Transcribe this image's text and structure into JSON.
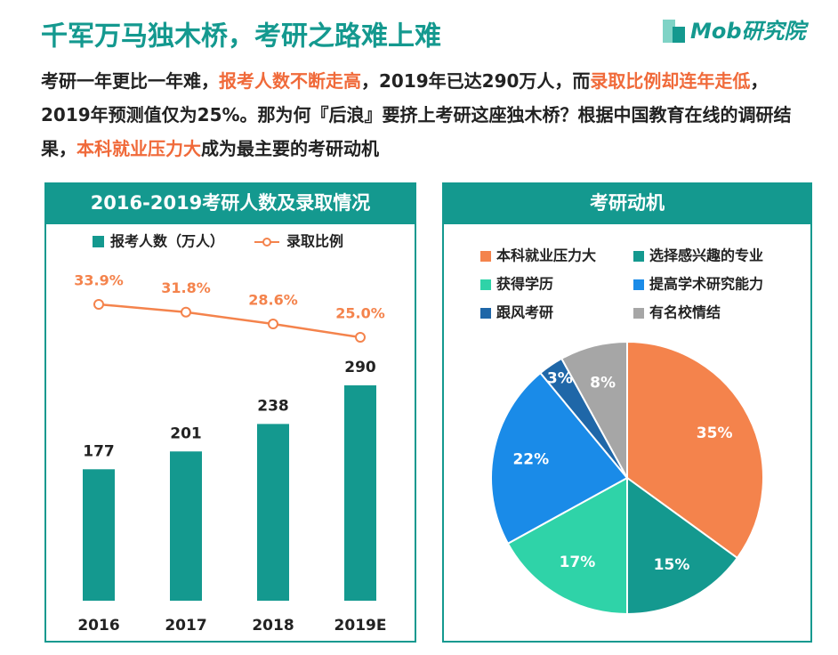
{
  "header": {
    "title": "千军万马独木桥，考研之路难上难",
    "logo": "Mob研究院"
  },
  "intro": [
    {
      "text": "考研一年更比一年难，",
      "highlight": false
    },
    {
      "text": "报考人数不断走高",
      "highlight": true
    },
    {
      "text": "，2019年已达290万人，而",
      "highlight": false
    },
    {
      "text": "录取比例却连年走低",
      "highlight": true
    },
    {
      "text": "，2019年预测值仅为25%。那为何『后浪』要挤上考研这座独木桥？根据中国教育在线的调研结果，",
      "highlight": false
    },
    {
      "text": "本科就业压力大",
      "highlight": true
    },
    {
      "text": "成为最主要的考研动机",
      "highlight": false
    }
  ],
  "chart_data": [
    {
      "type": "bar",
      "title": "2016-2019考研人数及录取情况",
      "categories": [
        "2016",
        "2017",
        "2018",
        "2019E"
      ],
      "series": [
        {
          "name": "报考人数（万人）",
          "color": "#14998f",
          "values": [
            177,
            201,
            238,
            290
          ]
        },
        {
          "name": "录取比例",
          "color": "#f4834c",
          "type": "line",
          "values": [
            33.9,
            31.8,
            28.6,
            25.0
          ],
          "value_labels": [
            "33.9%",
            "31.8%",
            "28.6%",
            "25.0%"
          ]
        }
      ]
    },
    {
      "type": "pie",
      "title": "考研动机",
      "categories": [
        "本科就业压力大",
        "选择感兴趣的专业",
        "获得学历",
        "提高学术研究能力",
        "跟风考研",
        "有名校情结"
      ],
      "values": [
        35,
        15,
        17,
        22,
        3,
        8
      ],
      "value_labels": [
        "35%",
        "15%",
        "17%",
        "22%",
        "3%",
        "8%"
      ],
      "colors": [
        "#f4834c",
        "#14998f",
        "#2fd3a8",
        "#1a8be8",
        "#1f67a8",
        "#a6a6a6"
      ]
    }
  ]
}
